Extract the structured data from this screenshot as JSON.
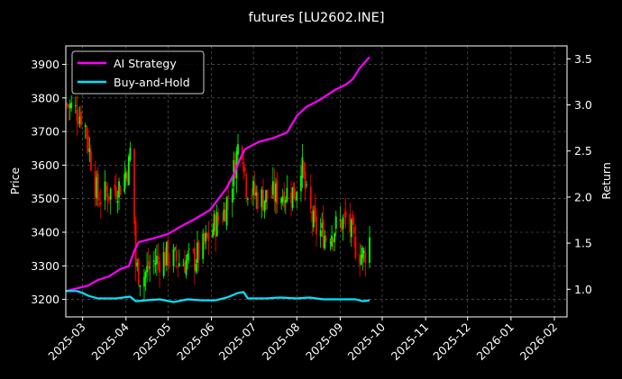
{
  "chart_data": {
    "type": "line",
    "title": "futures [LU2602.INE]",
    "ylabel_left": "Price",
    "ylabel_right": "Return",
    "xlabel": "",
    "grid": true,
    "legend_placement": "top-left",
    "x_ticks": [
      "2025-03",
      "2025-04",
      "2025-05",
      "2025-06",
      "2025-07",
      "2025-08",
      "2025-09",
      "2025-10",
      "2025-11",
      "2025-12",
      "2026-01",
      "2026-02"
    ],
    "x_range": [
      "2025-02-17",
      "2026-02-10"
    ],
    "y_left_ticks": [
      3200,
      3300,
      3400,
      3500,
      3600,
      3700,
      3800,
      3900
    ],
    "y_left_range": [
      3148,
      3955
    ],
    "y_right_ticks": [
      1.0,
      1.5,
      2.0,
      2.5,
      3.0,
      3.5
    ],
    "y_right_range": [
      0.7,
      3.64
    ],
    "colors": {
      "ai": "#ff00ff",
      "bh": "#00e5ff",
      "up": "#00ff00",
      "down": "#ff0000",
      "grid": "#666666"
    },
    "series": [
      {
        "name": "AI Strategy",
        "axis": "right",
        "points": [
          [
            "2025-02-17",
            0.98
          ],
          [
            "2025-02-25",
            1.01
          ],
          [
            "2025-03-05",
            1.04
          ],
          [
            "2025-03-12",
            1.1
          ],
          [
            "2025-03-20",
            1.14
          ],
          [
            "2025-03-28",
            1.22
          ],
          [
            "2025-04-03",
            1.25
          ],
          [
            "2025-04-07",
            1.42
          ],
          [
            "2025-04-10",
            1.51
          ],
          [
            "2025-04-20",
            1.55
          ],
          [
            "2025-05-01",
            1.6
          ],
          [
            "2025-05-10",
            1.68
          ],
          [
            "2025-05-20",
            1.76
          ],
          [
            "2025-05-31",
            1.86
          ],
          [
            "2025-06-06",
            1.98
          ],
          [
            "2025-06-12",
            2.1
          ],
          [
            "2025-06-18",
            2.28
          ],
          [
            "2025-06-22",
            2.43
          ],
          [
            "2025-06-25",
            2.52
          ],
          [
            "2025-07-05",
            2.6
          ],
          [
            "2025-07-15",
            2.64
          ],
          [
            "2025-07-25",
            2.7
          ],
          [
            "2025-08-01",
            2.88
          ],
          [
            "2025-08-08",
            2.98
          ],
          [
            "2025-08-18",
            3.06
          ],
          [
            "2025-08-28",
            3.16
          ],
          [
            "2025-09-05",
            3.22
          ],
          [
            "2025-09-10",
            3.28
          ],
          [
            "2025-09-15",
            3.4
          ],
          [
            "2025-09-22",
            3.52
          ]
        ]
      },
      {
        "name": "Buy-and-Hold",
        "axis": "right",
        "points": [
          [
            "2025-02-17",
            0.98
          ],
          [
            "2025-02-25",
            0.98
          ],
          [
            "2025-03-01",
            0.96
          ],
          [
            "2025-03-05",
            0.93
          ],
          [
            "2025-03-12",
            0.9
          ],
          [
            "2025-03-25",
            0.9
          ],
          [
            "2025-04-04",
            0.92
          ],
          [
            "2025-04-08",
            0.87
          ],
          [
            "2025-04-15",
            0.88
          ],
          [
            "2025-04-25",
            0.89
          ],
          [
            "2025-05-05",
            0.86
          ],
          [
            "2025-05-15",
            0.89
          ],
          [
            "2025-05-25",
            0.88
          ],
          [
            "2025-06-04",
            0.88
          ],
          [
            "2025-06-12",
            0.91
          ],
          [
            "2025-06-20",
            0.96
          ],
          [
            "2025-06-24",
            0.97
          ],
          [
            "2025-06-27",
            0.9
          ],
          [
            "2025-07-10",
            0.9
          ],
          [
            "2025-07-20",
            0.91
          ],
          [
            "2025-08-01",
            0.9
          ],
          [
            "2025-08-10",
            0.91
          ],
          [
            "2025-08-20",
            0.89
          ],
          [
            "2025-09-01",
            0.89
          ],
          [
            "2025-09-12",
            0.89
          ],
          [
            "2025-09-17",
            0.87
          ],
          [
            "2025-09-22",
            0.88
          ]
        ]
      }
    ],
    "price_trend": [
      [
        "2025-02-18",
        3780
      ],
      [
        "2025-02-25",
        3760
      ],
      [
        "2025-03-02",
        3740
      ],
      [
        "2025-03-06",
        3640
      ],
      [
        "2025-03-12",
        3500
      ],
      [
        "2025-03-20",
        3520
      ],
      [
        "2025-03-28",
        3540
      ],
      [
        "2025-04-03",
        3600
      ],
      [
        "2025-04-05",
        3680
      ],
      [
        "2025-04-08",
        3300
      ],
      [
        "2025-04-12",
        3260
      ],
      [
        "2025-04-20",
        3310
      ],
      [
        "2025-04-30",
        3330
      ],
      [
        "2025-05-10",
        3310
      ],
      [
        "2025-05-20",
        3320
      ],
      [
        "2025-05-27",
        3360
      ],
      [
        "2025-06-03",
        3420
      ],
      [
        "2025-06-10",
        3460
      ],
      [
        "2025-06-16",
        3560
      ],
      [
        "2025-06-22",
        3700
      ],
      [
        "2025-06-26",
        3540
      ],
      [
        "2025-07-05",
        3500
      ],
      [
        "2025-07-15",
        3510
      ],
      [
        "2025-07-25",
        3520
      ],
      [
        "2025-07-31",
        3520
      ],
      [
        "2025-08-04",
        3610
      ],
      [
        "2025-08-08",
        3500
      ],
      [
        "2025-08-14",
        3410
      ],
      [
        "2025-08-22",
        3390
      ],
      [
        "2025-08-30",
        3420
      ],
      [
        "2025-09-06",
        3440
      ],
      [
        "2025-09-10",
        3380
      ],
      [
        "2025-09-14",
        3340
      ],
      [
        "2025-09-18",
        3330
      ],
      [
        "2025-09-22",
        3380
      ]
    ]
  }
}
